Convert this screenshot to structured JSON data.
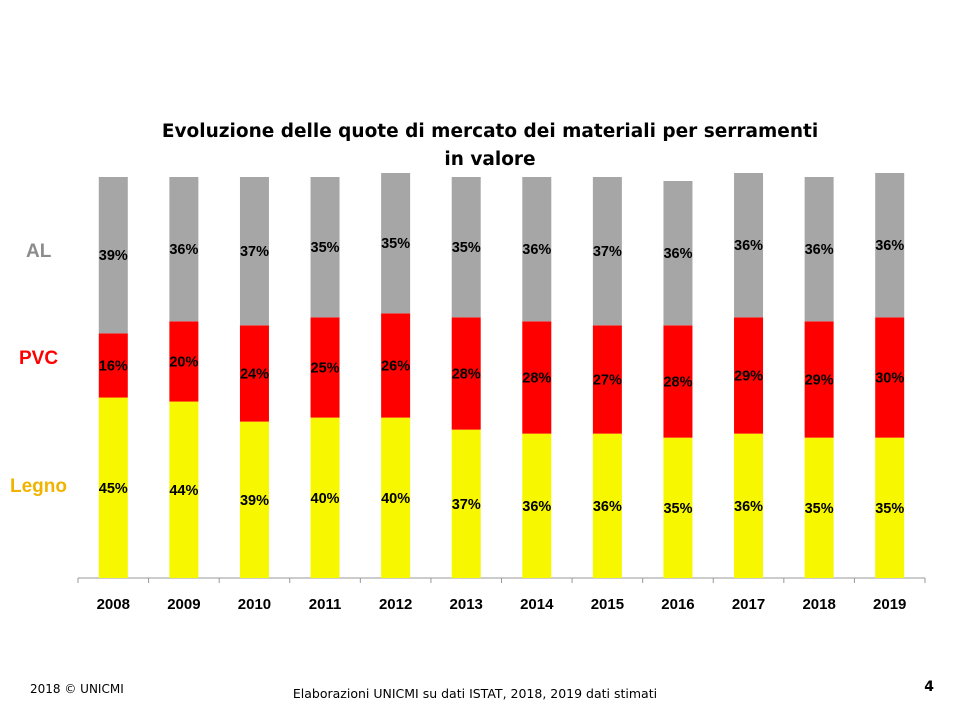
{
  "chart_data": {
    "type": "bar",
    "stacked": true,
    "title": "Evoluzione delle quote di mercato dei materiali per serramenti in valore",
    "categories": [
      "2008",
      "2009",
      "2010",
      "2011",
      "2012",
      "2013",
      "2014",
      "2015",
      "2016",
      "2017",
      "2018",
      "2019"
    ],
    "series": [
      {
        "name": "Legno",
        "color": "#f7f700",
        "labelColor": "#f0b400",
        "values": [
          45,
          44,
          39,
          40,
          40,
          37,
          36,
          36,
          35,
          36,
          35,
          35
        ]
      },
      {
        "name": "PVC",
        "color": "#ff0000",
        "labelColor": "#ff0000",
        "values": [
          16,
          20,
          24,
          25,
          26,
          28,
          28,
          27,
          28,
          29,
          29,
          30
        ]
      },
      {
        "name": "AL",
        "color": "#a6a6a6",
        "labelColor": "#8c8c8c",
        "values": [
          39,
          36,
          37,
          35,
          35,
          35,
          36,
          37,
          36,
          36,
          36,
          36
        ]
      }
    ],
    "ylim": [
      0,
      100
    ],
    "grid": false,
    "legend": "left"
  },
  "footer": {
    "copyright": "2018 © UNICMI",
    "source": "Elaborazioni UNICMI  su dati ISTAT, 2018, 2019 dati stimati",
    "page_number": "4"
  }
}
